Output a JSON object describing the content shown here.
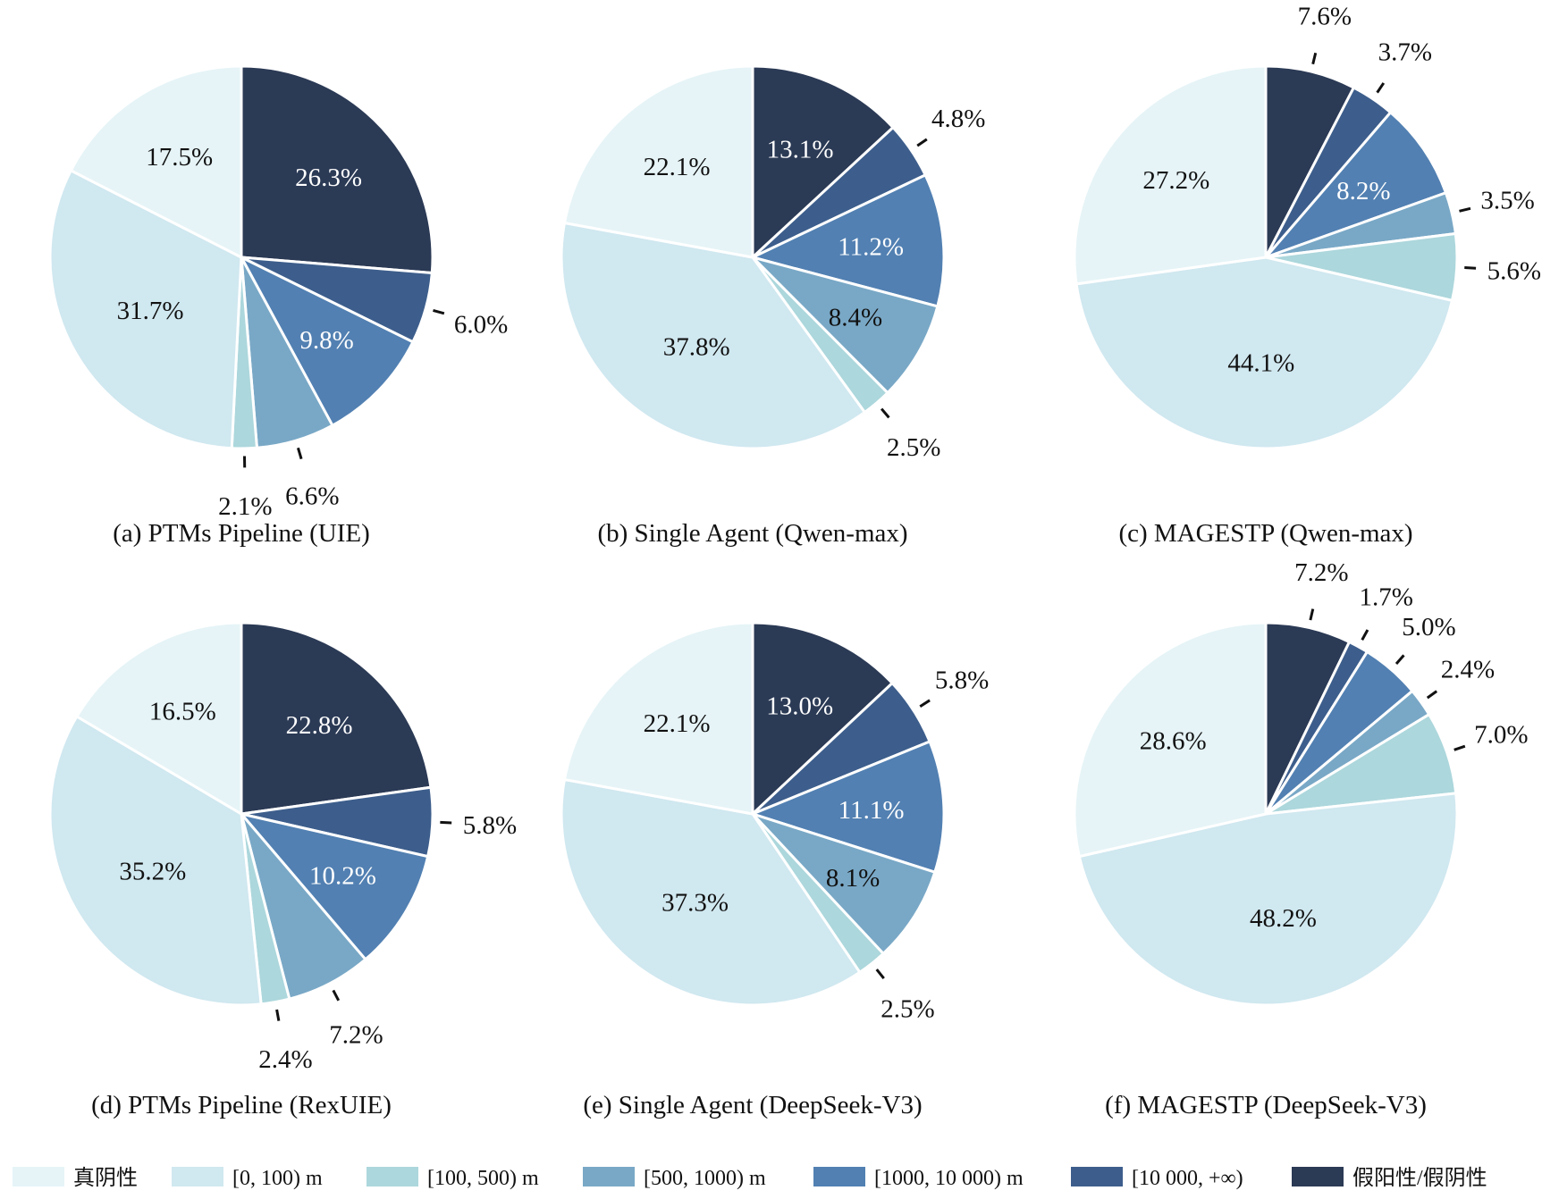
{
  "chart_data": [
    {
      "type": "pie",
      "title": "(a) PTMs Pipeline (UIE)",
      "values": [
        26.3,
        6.0,
        9.8,
        6.6,
        2.1,
        31.7,
        17.5
      ],
      "labels": [
        "26.3%",
        "6.0%",
        "9.8%",
        "6.6%",
        "2.1%",
        "31.7%",
        "17.5%"
      ],
      "outside": [
        false,
        true,
        false,
        true,
        true,
        false,
        false
      ]
    },
    {
      "type": "pie",
      "title": "(b) Single Agent (Qwen-max)",
      "values": [
        13.1,
        4.8,
        11.2,
        8.4,
        2.5,
        37.8,
        22.1
      ],
      "labels": [
        "13.1%",
        "4.8%",
        "11.2%",
        "8.4%",
        "2.5%",
        "37.8%",
        "22.1%"
      ],
      "outside": [
        false,
        true,
        false,
        false,
        true,
        false,
        false
      ]
    },
    {
      "type": "pie",
      "title": "(c) MAGESTP (Qwen-max)",
      "values": [
        7.6,
        3.7,
        8.2,
        3.5,
        5.6,
        44.1,
        27.2
      ],
      "labels": [
        "7.6%",
        "3.7%",
        "8.2%",
        "3.5%",
        "5.6%",
        "44.1%",
        "27.2%"
      ],
      "outside": [
        true,
        true,
        false,
        true,
        true,
        false,
        false
      ]
    },
    {
      "type": "pie",
      "title": "(d) PTMs Pipeline (RexUIE)",
      "values": [
        22.8,
        5.8,
        10.2,
        7.2,
        2.4,
        35.2,
        16.5
      ],
      "labels": [
        "22.8%",
        "5.8%",
        "10.2%",
        "7.2%",
        "2.4%",
        "35.2%",
        "16.5%"
      ],
      "outside": [
        false,
        true,
        false,
        true,
        true,
        false,
        false
      ]
    },
    {
      "type": "pie",
      "title": "(e) Single Agent (DeepSeek-V3)",
      "values": [
        13.0,
        5.8,
        11.1,
        8.1,
        2.5,
        37.3,
        22.1
      ],
      "labels": [
        "13.0%",
        "5.8%",
        "11.1%",
        "8.1%",
        "2.5%",
        "37.3%",
        "22.1%"
      ],
      "outside": [
        false,
        true,
        false,
        false,
        true,
        false,
        false
      ]
    },
    {
      "type": "pie",
      "title": "(f) MAGESTP (DeepSeek-V3)",
      "values": [
        7.2,
        1.7,
        5.0,
        2.4,
        7.0,
        48.2,
        28.6
      ],
      "labels": [
        "7.2%",
        "1.7%",
        "5.0%",
        "2.4%",
        "7.0%",
        "48.2%",
        "28.6%"
      ],
      "outside": [
        true,
        true,
        true,
        true,
        true,
        false,
        false
      ]
    }
  ],
  "legend": {
    "placement": "bottom",
    "categories": [
      "假阳性/假阴性",
      "[10 000, +∞)",
      "[1000, 10 000) m",
      "[500, 1000) m",
      "[100, 500) m",
      "[0, 100) m",
      "真阴性"
    ],
    "order_shown": [
      "真阴性",
      "[0, 100) m",
      "[100, 500) m",
      "[500, 1000) m",
      "[1000, 10 000) m",
      "[10 000, +∞)",
      "假阳性/假阴性"
    ]
  },
  "colors": [
    "#2b3a55",
    "#3d5e8c",
    "#5280b2",
    "#79a8c6",
    "#acd7dc",
    "#d0e8f0",
    "#e6f4f7"
  ],
  "label_colors": [
    "#ffffff",
    "#ffffff",
    "#ffffff",
    "#111111",
    "#111111",
    "#111111",
    "#111111"
  ]
}
